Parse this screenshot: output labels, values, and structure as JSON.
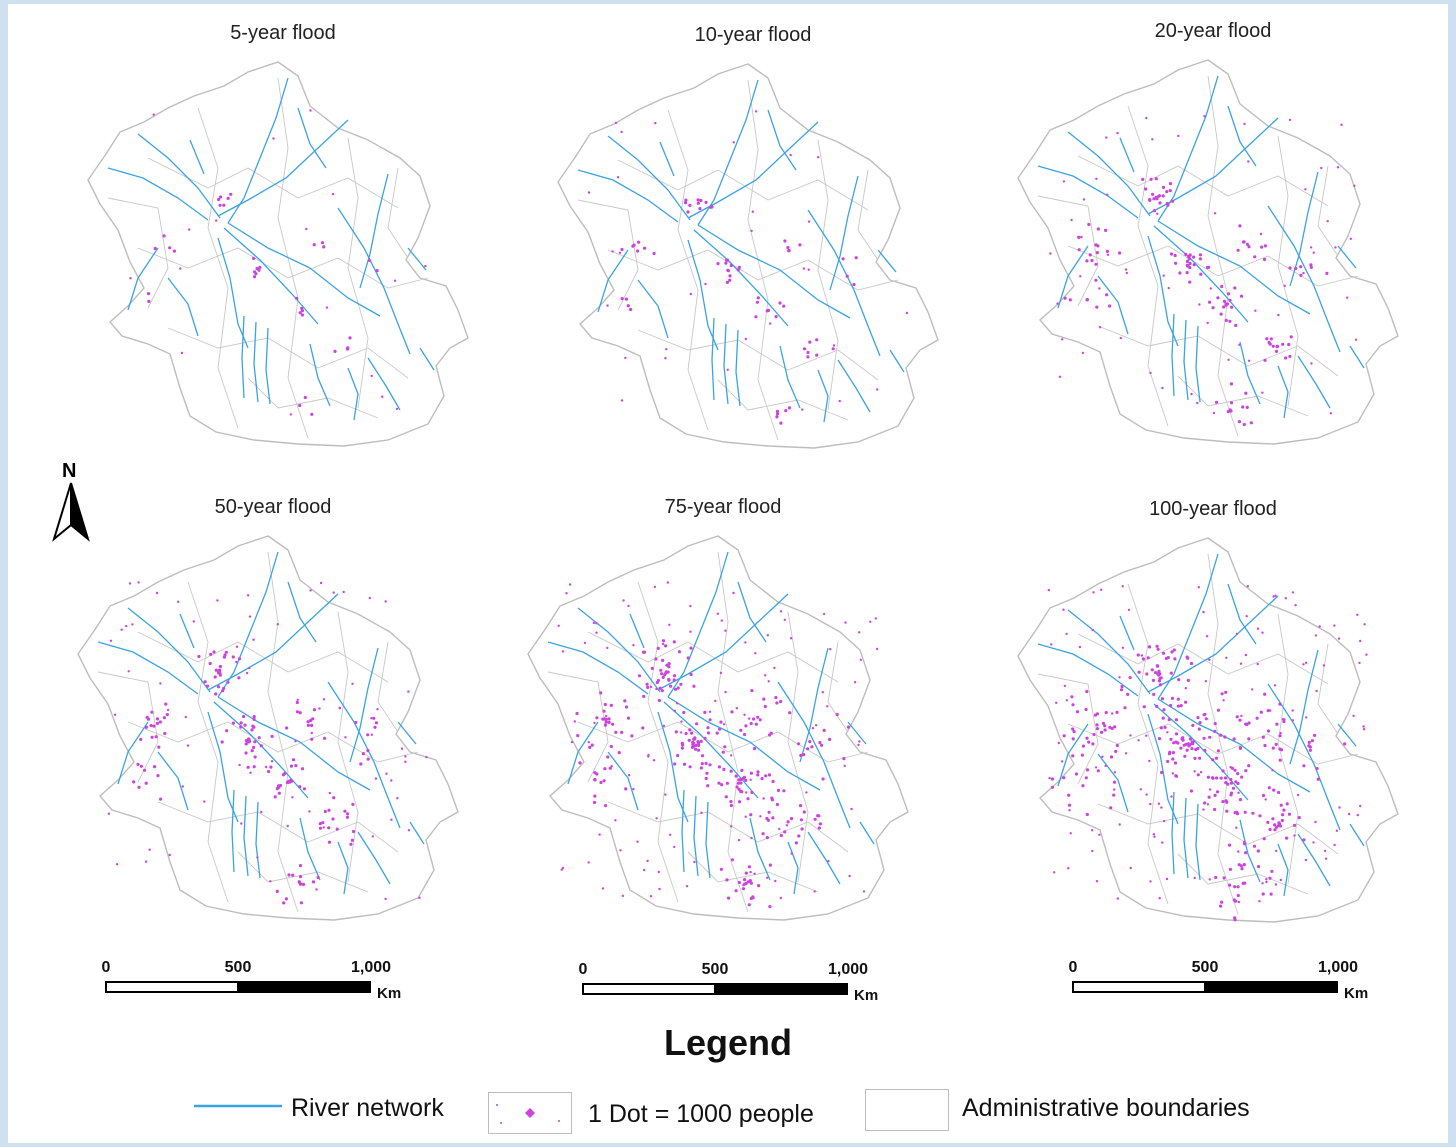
{
  "panels": [
    {
      "title": "5-year flood",
      "density": 0.12
    },
    {
      "title": "10-year flood",
      "density": 0.22
    },
    {
      "title": "20-year flood",
      "density": 0.45
    },
    {
      "title": "50-year flood",
      "density": 0.55
    },
    {
      "title": "75-year flood",
      "density": 0.85
    },
    {
      "title": "100-year flood",
      "density": 1.0
    }
  ],
  "north_arrow": {
    "label": "N"
  },
  "scale_bar": {
    "ticks": [
      "0",
      "500",
      "1,000"
    ],
    "unit": "Km"
  },
  "legend": {
    "title": "Legend",
    "items": [
      {
        "label": "River network",
        "symbol": "line",
        "color": "#3aa3e3"
      },
      {
        "label": "1 Dot = 1000 people",
        "symbol": "dot",
        "color": "#cc44dd"
      },
      {
        "label": "Administrative boundaries",
        "symbol": "box",
        "color": "#bdbdbd"
      }
    ]
  },
  "colors": {
    "river": "#3aa3e3",
    "dot": "#cc44dd",
    "boundary": "#c8c8c8",
    "coast": "#bdbdbd"
  }
}
